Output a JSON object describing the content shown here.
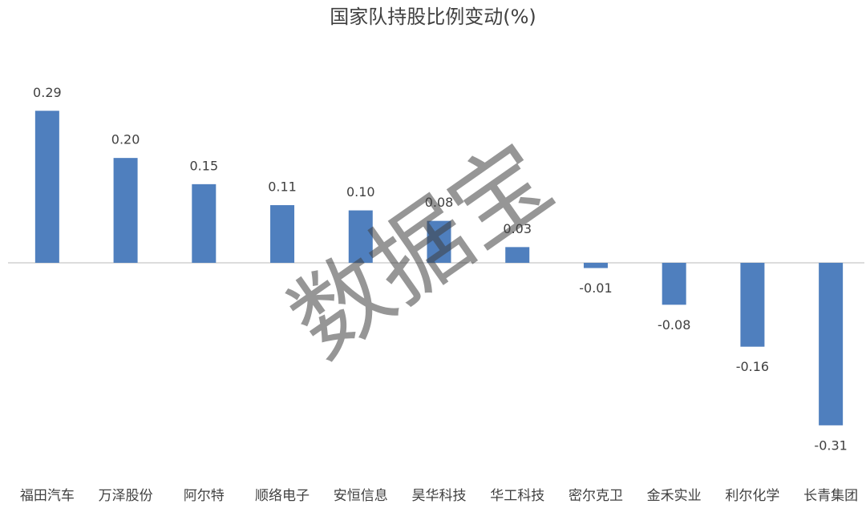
{
  "chart_data": {
    "type": "bar",
    "title": "国家队持股比例变动(%)",
    "categories": [
      "福田汽车",
      "万泽股份",
      "阿尔特",
      "顺络电子",
      "安恒信息",
      "昊华科技",
      "华工科技",
      "密尔克卫",
      "金禾实业",
      "利尔化学",
      "长青集团"
    ],
    "values": [
      0.29,
      0.2,
      0.15,
      0.11,
      0.1,
      0.08,
      0.03,
      -0.01,
      -0.08,
      -0.16,
      -0.31
    ],
    "value_labels": [
      "0.29",
      "0.20",
      "0.15",
      "0.11",
      "0.10",
      "0.08",
      "0.03",
      "-0.01",
      "-0.08",
      "-0.16",
      "-0.31"
    ],
    "color": "#4f7fbe",
    "ylim": [
      -0.35,
      0.35
    ],
    "watermark": "数据宝"
  }
}
